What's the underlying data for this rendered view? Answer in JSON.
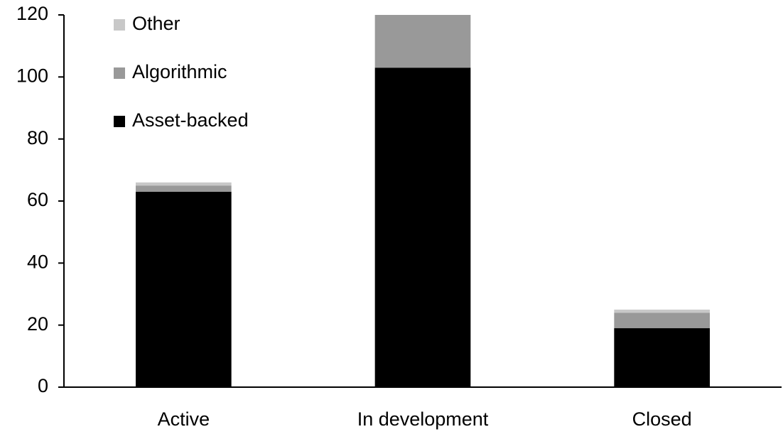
{
  "chart_data": {
    "type": "stacked_bar",
    "categories": [
      "Active",
      "In development",
      "Closed"
    ],
    "series": [
      {
        "name": "Asset-backed",
        "color": "#000000",
        "values": [
          63,
          103,
          19
        ]
      },
      {
        "name": "Algorithmic",
        "color": "#999999",
        "values": [
          2,
          17,
          5
        ]
      },
      {
        "name": "Other",
        "color": "#c8c8c8",
        "values": [
          1,
          0,
          1
        ]
      }
    ],
    "ylim": [
      0,
      120
    ],
    "yticks": [
      0,
      20,
      40,
      60,
      80,
      100,
      120
    ],
    "grid": false,
    "legend": "top-left"
  }
}
